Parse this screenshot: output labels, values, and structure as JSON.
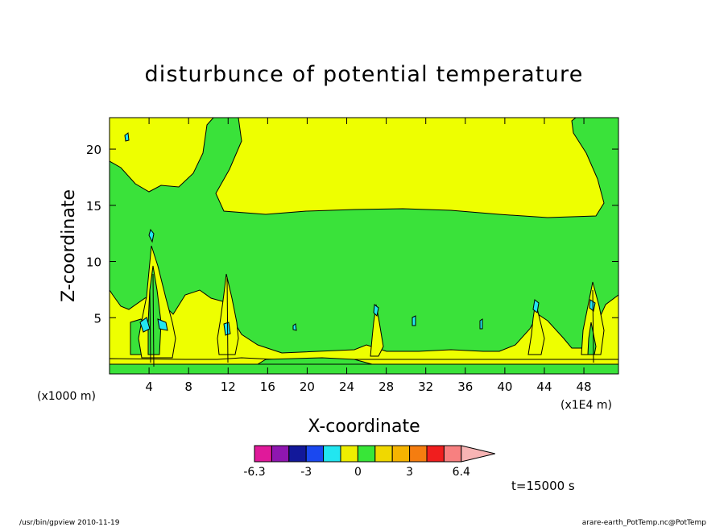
{
  "chart_data": {
    "type": "heatmap",
    "title": "disturbunce of potential temperature",
    "xlabel": "X-coordinate",
    "ylabel": "Z-coordinate",
    "x_unit_left": "(x1000 m)",
    "x_unit_right": "(x1E4 m)",
    "xlim": [
      0,
      51.5
    ],
    "ylim": [
      0,
      22.8
    ],
    "x_ticks": [
      "4",
      "8",
      "12",
      "16",
      "20",
      "24",
      "28",
      "32",
      "36",
      "40",
      "44",
      "48"
    ],
    "y_ticks": [
      "5",
      "10",
      "15",
      "20"
    ],
    "colorbar": {
      "levels": [
        -6.3,
        -3,
        0,
        3,
        6.4
      ],
      "tick_labels": [
        "-6.3",
        "-3",
        "0",
        "3",
        "6.4"
      ],
      "colors": [
        "#e0199a",
        "#8f16b0",
        "#12189a",
        "#1a48f0",
        "#22e6f0",
        "#eeee00",
        "#38e638",
        "#f0d800",
        "#f5b400",
        "#f57d10",
        "#f01e1e",
        "#f78080",
        "#f7b4b4"
      ]
    },
    "background_color": "#eeff00",
    "green_color": "#3ae23a",
    "time_label": "t=15000 s"
  },
  "footer": {
    "left": "/usr/bin/gpview   2010-11-19",
    "right": "arare-earth_PotTemp.nc@PotTemp"
  }
}
